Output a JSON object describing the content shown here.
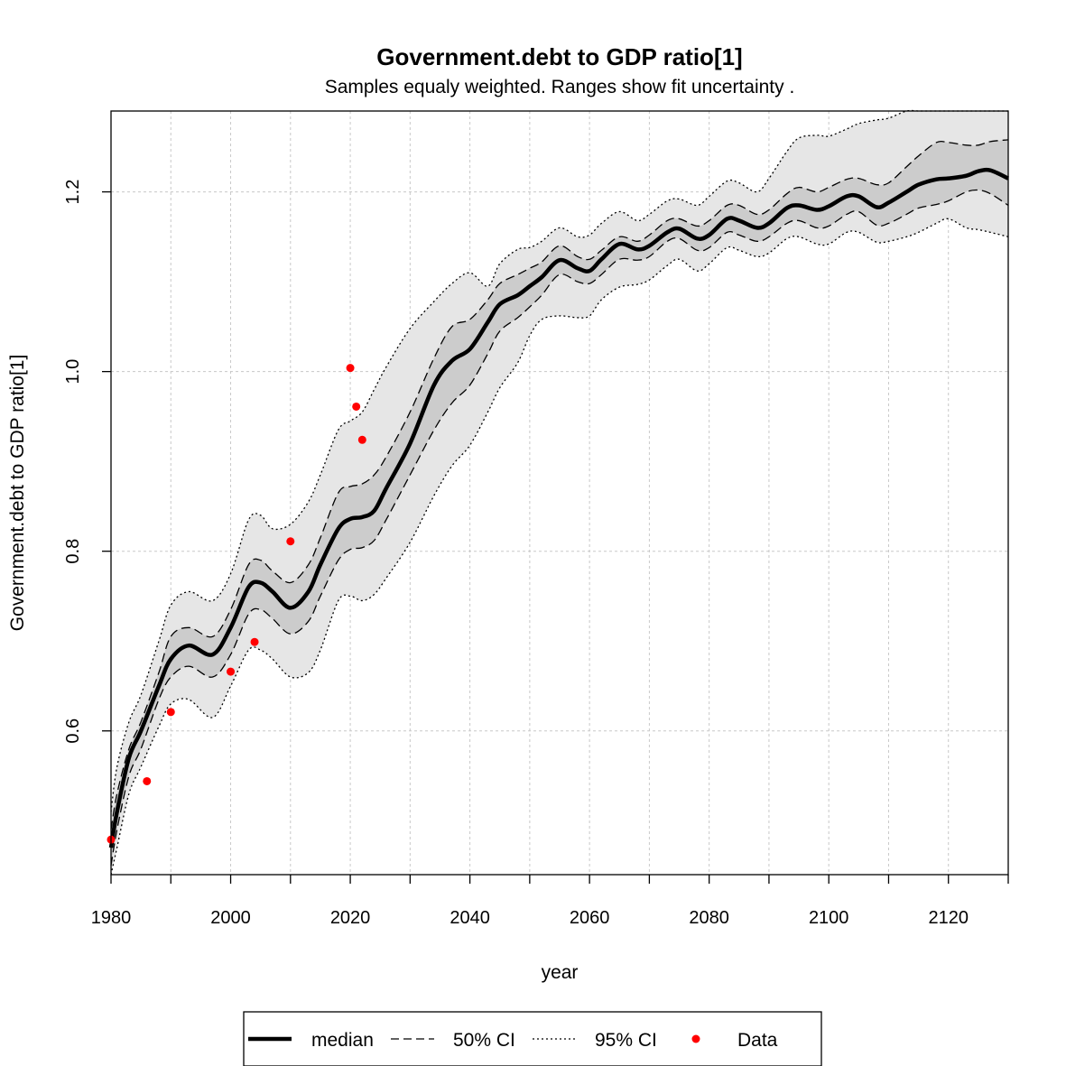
{
  "chart_data": {
    "type": "line",
    "title": "Government.debt to GDP ratio[1]",
    "subtitle": "Samples equaly weighted. Ranges show  fit uncertainty .",
    "xlabel": "year",
    "ylabel": "Government.debt to GDP ratio[1]",
    "xlim": [
      1980,
      2130
    ],
    "ylim": [
      0.44,
      1.29
    ],
    "x_ticks": [
      1980,
      2000,
      2020,
      2040,
      2060,
      2080,
      2100,
      2120
    ],
    "x_minor_ticks": [
      1990,
      2010,
      2030,
      2050,
      2070,
      2090,
      2110,
      2130
    ],
    "y_ticks": [
      0.6,
      0.8,
      1.0,
      1.2
    ],
    "x_tick_labels": [
      "1980",
      "2000",
      "2020",
      "2040",
      "2060",
      "2080",
      "2100",
      "2120"
    ],
    "y_tick_labels": [
      "0.6",
      "0.8",
      "1.0",
      "1.2"
    ],
    "grid": true,
    "legend_position": "bottom",
    "colors": {
      "median": "#000000",
      "band95": "#e6e6e6",
      "band50": "#cccccc",
      "data": "#ff0000",
      "grid": "#c8c8c8"
    },
    "legend": [
      {
        "key": "median",
        "label": "median"
      },
      {
        "key": "ci50",
        "label": "50% CI"
      },
      {
        "key": "ci95",
        "label": "95% CI"
      },
      {
        "key": "data",
        "label": "Data"
      }
    ],
    "x": [
      1980,
      1981,
      1983,
      1985,
      1988,
      1990,
      1993,
      1997,
      2000,
      2003,
      2005,
      2007,
      2010,
      2013,
      2015,
      2018,
      2020,
      2022,
      2024,
      2026,
      2030,
      2034,
      2037,
      2040,
      2043,
      2045,
      2048,
      2050,
      2052,
      2055,
      2058,
      2060,
      2062,
      2065,
      2068,
      2070,
      2073,
      2075,
      2078,
      2080,
      2083,
      2085,
      2088,
      2090,
      2093,
      2095,
      2098,
      2100,
      2103,
      2105,
      2108,
      2110,
      2113,
      2115,
      2118,
      2120,
      2123,
      2125,
      2127,
      2130
    ],
    "series": [
      {
        "key": "median",
        "values": [
          0.47,
          0.51,
          0.57,
          0.6,
          0.65,
          0.68,
          0.695,
          0.685,
          0.715,
          0.76,
          0.765,
          0.755,
          0.737,
          0.755,
          0.785,
          0.825,
          0.836,
          0.838,
          0.845,
          0.87,
          0.92,
          0.985,
          1.012,
          1.025,
          1.055,
          1.075,
          1.085,
          1.095,
          1.105,
          1.124,
          1.115,
          1.112,
          1.125,
          1.142,
          1.136,
          1.14,
          1.155,
          1.159,
          1.148,
          1.152,
          1.17,
          1.168,
          1.16,
          1.165,
          1.182,
          1.185,
          1.18,
          1.184,
          1.195,
          1.195,
          1.183,
          1.188,
          1.2,
          1.208,
          1.214,
          1.215,
          1.218,
          1.223,
          1.224,
          1.215
        ]
      },
      {
        "key": "ci50_upper",
        "values": [
          0.49,
          0.53,
          0.58,
          0.61,
          0.665,
          0.705,
          0.715,
          0.705,
          0.735,
          0.785,
          0.79,
          0.778,
          0.765,
          0.785,
          0.815,
          0.865,
          0.872,
          0.875,
          0.885,
          0.905,
          0.955,
          1.015,
          1.05,
          1.058,
          1.08,
          1.098,
          1.108,
          1.115,
          1.122,
          1.14,
          1.128,
          1.125,
          1.135,
          1.15,
          1.145,
          1.152,
          1.168,
          1.17,
          1.162,
          1.168,
          1.185,
          1.185,
          1.175,
          1.18,
          1.198,
          1.205,
          1.2,
          1.205,
          1.214,
          1.215,
          1.208,
          1.21,
          1.228,
          1.24,
          1.255,
          1.255,
          1.252,
          1.252,
          1.256,
          1.258
        ]
      },
      {
        "key": "ci50_lower",
        "values": [
          0.45,
          0.49,
          0.55,
          0.58,
          0.635,
          0.66,
          0.672,
          0.66,
          0.685,
          0.73,
          0.735,
          0.725,
          0.708,
          0.722,
          0.75,
          0.79,
          0.802,
          0.804,
          0.812,
          0.835,
          0.885,
          0.935,
          0.965,
          0.985,
          1.02,
          1.045,
          1.06,
          1.072,
          1.085,
          1.108,
          1.1,
          1.098,
          1.108,
          1.125,
          1.124,
          1.128,
          1.145,
          1.148,
          1.135,
          1.138,
          1.155,
          1.152,
          1.145,
          1.15,
          1.165,
          1.168,
          1.16,
          1.162,
          1.175,
          1.178,
          1.163,
          1.165,
          1.175,
          1.182,
          1.186,
          1.19,
          1.2,
          1.202,
          1.198,
          1.185
        ]
      },
      {
        "key": "ci95_upper",
        "values": [
          0.51,
          0.56,
          0.61,
          0.64,
          0.7,
          0.74,
          0.755,
          0.745,
          0.775,
          0.835,
          0.84,
          0.825,
          0.83,
          0.855,
          0.885,
          0.935,
          0.945,
          0.955,
          0.98,
          1.005,
          1.048,
          1.078,
          1.098,
          1.11,
          1.095,
          1.12,
          1.136,
          1.138,
          1.145,
          1.16,
          1.15,
          1.152,
          1.165,
          1.178,
          1.168,
          1.175,
          1.19,
          1.192,
          1.185,
          1.195,
          1.212,
          1.21,
          1.2,
          1.215,
          1.245,
          1.26,
          1.263,
          1.262,
          1.27,
          1.276,
          1.28,
          1.282,
          1.295,
          1.31,
          1.31,
          1.312,
          1.315,
          1.32,
          1.318,
          1.32
        ]
      },
      {
        "key": "ci95_lower",
        "values": [
          0.44,
          0.47,
          0.53,
          0.56,
          0.605,
          0.63,
          0.635,
          0.615,
          0.65,
          0.69,
          0.69,
          0.68,
          0.66,
          0.665,
          0.69,
          0.745,
          0.75,
          0.745,
          0.752,
          0.77,
          0.81,
          0.862,
          0.895,
          0.918,
          0.955,
          0.982,
          1.01,
          1.04,
          1.058,
          1.062,
          1.06,
          1.062,
          1.08,
          1.094,
          1.097,
          1.102,
          1.118,
          1.125,
          1.112,
          1.12,
          1.138,
          1.135,
          1.128,
          1.132,
          1.148,
          1.15,
          1.142,
          1.142,
          1.155,
          1.155,
          1.144,
          1.145,
          1.15,
          1.155,
          1.165,
          1.17,
          1.16,
          1.158,
          1.155,
          1.15
        ]
      }
    ],
    "data_points": [
      {
        "x": 1980,
        "y": 0.479
      },
      {
        "x": 1986,
        "y": 0.544
      },
      {
        "x": 1990,
        "y": 0.621
      },
      {
        "x": 2000,
        "y": 0.666
      },
      {
        "x": 2004,
        "y": 0.699
      },
      {
        "x": 2010,
        "y": 0.811
      },
      {
        "x": 2020,
        "y": 1.004
      },
      {
        "x": 2021,
        "y": 0.961
      },
      {
        "x": 2022,
        "y": 0.924
      }
    ]
  }
}
